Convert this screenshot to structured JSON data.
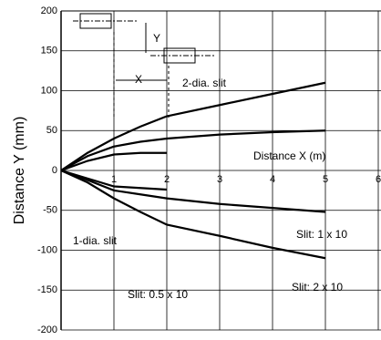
{
  "chart_data": {
    "type": "line",
    "ylabel": "Distance Y (mm)",
    "x": [
      0,
      0.5,
      1,
      1.5,
      2,
      3,
      4,
      5
    ],
    "series": [
      {
        "color": "#000000",
        "values": [
          0,
          22,
          40,
          55,
          68,
          82,
          96,
          110
        ]
      },
      {
        "color": "#000000",
        "values": [
          0,
          18,
          30,
          36,
          40,
          45,
          48,
          50
        ]
      },
      {
        "color": "#000000",
        "values": [
          0,
          12,
          20,
          22,
          22,
          null,
          null,
          null
        ]
      },
      {
        "color": "#000000",
        "values": [
          0,
          -15,
          -35,
          -52,
          -68,
          -82,
          -97,
          -110
        ]
      },
      {
        "color": "#000000",
        "values": [
          0,
          -12,
          -25,
          -30,
          -35,
          -42,
          -47,
          -52
        ]
      },
      {
        "color": "#000000",
        "values": [
          0,
          -10,
          -20,
          -22,
          -24,
          null,
          null,
          null
        ]
      }
    ],
    "xlim": [
      0,
      6
    ],
    "xticks": [
      1,
      2,
      3,
      4,
      5,
      6
    ],
    "ylim": [
      -200,
      200
    ],
    "yticks": [
      200,
      150,
      100,
      50,
      0,
      -50,
      -100,
      -150,
      -200
    ],
    "grid": true,
    "annotations": [
      "2-dia. slit",
      "Distance X (m)",
      "1-dia. slit",
      "Slit: 0.5 x 10",
      "Slit: 1 x 10",
      "Slit: 2 x 10",
      "X",
      "Y"
    ]
  }
}
